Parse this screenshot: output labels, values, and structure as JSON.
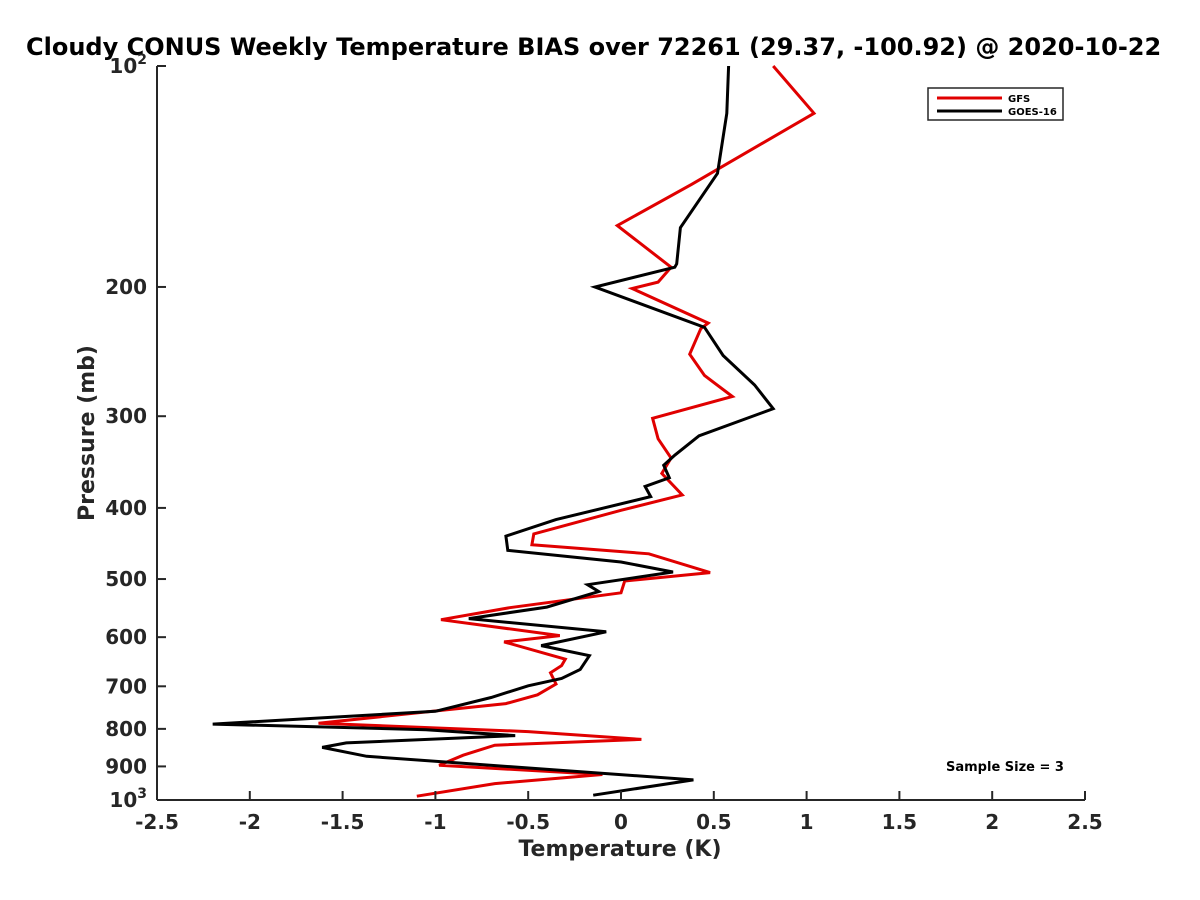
{
  "chart_data": {
    "type": "line",
    "title": "Cloudy CONUS Weekly Temperature BIAS over 72261 (29.37, -100.92) @ 2020-10-22",
    "xlabel": "Temperature (K)",
    "ylabel": "Pressure (mb)",
    "xlim": [
      -2.5,
      2.5
    ],
    "ylim": [
      100,
      1000
    ],
    "yscale": "log",
    "y_reversed": true,
    "grid": false,
    "legend_position": "top-right",
    "annotation": "Sample Size = 3",
    "x_ticks": [
      "-2.5",
      "-2",
      "-1.5",
      "-1",
      "-0.5",
      "0",
      "0.5",
      "1",
      "1.5",
      "2",
      "2.5"
    ],
    "x_tick_values": [
      -2.5,
      -2,
      -1.5,
      -1,
      -0.5,
      0,
      0.5,
      1,
      1.5,
      2,
      2.5
    ],
    "y_ticks": [
      {
        "value": 100,
        "label": "10",
        "sup": "2"
      },
      {
        "value": 200,
        "label": "200",
        "sup": ""
      },
      {
        "value": 300,
        "label": "300",
        "sup": ""
      },
      {
        "value": 400,
        "label": "400",
        "sup": ""
      },
      {
        "value": 500,
        "label": "500",
        "sup": ""
      },
      {
        "value": 600,
        "label": "600",
        "sup": ""
      },
      {
        "value": 700,
        "label": "700",
        "sup": ""
      },
      {
        "value": 800,
        "label": "800",
        "sup": ""
      },
      {
        "value": 900,
        "label": "900",
        "sup": ""
      },
      {
        "value": 1000,
        "label": "10",
        "sup": "3"
      }
    ],
    "series": [
      {
        "name": "GFS",
        "color": "#e00000",
        "points": [
          [
            0.82,
            100
          ],
          [
            1.04,
            116
          ],
          [
            0.38,
            145
          ],
          [
            -0.02,
            165
          ],
          [
            0.27,
            188
          ],
          [
            0.2,
            197
          ],
          [
            0.06,
            201
          ],
          [
            0.47,
            224
          ],
          [
            0.43,
            228
          ],
          [
            0.37,
            247
          ],
          [
            0.45,
            264
          ],
          [
            0.6,
            282
          ],
          [
            0.17,
            302
          ],
          [
            0.2,
            322
          ],
          [
            0.27,
            342
          ],
          [
            0.22,
            359
          ],
          [
            0.33,
            384
          ],
          [
            0.0,
            403
          ],
          [
            -0.47,
            434
          ],
          [
            -0.48,
            449
          ],
          [
            0.15,
            462
          ],
          [
            0.48,
            490
          ],
          [
            0.02,
            503
          ],
          [
            0.0,
            522
          ],
          [
            -0.6,
            547
          ],
          [
            -0.97,
            568
          ],
          [
            -0.33,
            597
          ],
          [
            -0.63,
            609
          ],
          [
            -0.3,
            643
          ],
          [
            -0.32,
            656
          ],
          [
            -0.38,
            671
          ],
          [
            -0.35,
            695
          ],
          [
            -0.45,
            719
          ],
          [
            -0.62,
            739
          ],
          [
            -1.63,
            786
          ],
          [
            -0.5,
            807
          ],
          [
            0.11,
            827
          ],
          [
            -0.68,
            842
          ],
          [
            -0.85,
            869
          ],
          [
            -0.98,
            897
          ],
          [
            -0.1,
            923
          ],
          [
            -0.68,
            950
          ],
          [
            -1.1,
            988
          ]
        ]
      },
      {
        "name": "GOES-16",
        "color": "#000000",
        "points": [
          [
            0.58,
            100
          ],
          [
            0.57,
            116
          ],
          [
            0.52,
            140
          ],
          [
            0.32,
            166
          ],
          [
            0.3,
            186
          ],
          [
            0.29,
            188
          ],
          [
            -0.14,
            200
          ],
          [
            0.45,
            227
          ],
          [
            0.55,
            248
          ],
          [
            0.72,
            272
          ],
          [
            0.82,
            293
          ],
          [
            0.42,
            319
          ],
          [
            0.29,
            339
          ],
          [
            0.23,
            350
          ],
          [
            0.26,
            364
          ],
          [
            0.13,
            374
          ],
          [
            0.16,
            386
          ],
          [
            -0.35,
            415
          ],
          [
            -0.62,
            437
          ],
          [
            -0.61,
            457
          ],
          [
            0.0,
            474
          ],
          [
            0.28,
            489
          ],
          [
            -0.18,
            509
          ],
          [
            -0.12,
            520
          ],
          [
            -0.4,
            546
          ],
          [
            -0.82,
            566
          ],
          [
            -0.08,
            590
          ],
          [
            -0.43,
            616
          ],
          [
            -0.17,
            636
          ],
          [
            -0.22,
            664
          ],
          [
            -0.32,
            683
          ],
          [
            -0.5,
            699
          ],
          [
            -0.7,
            725
          ],
          [
            -1.0,
            757
          ],
          [
            -2.2,
            788
          ],
          [
            -1.05,
            802
          ],
          [
            -0.57,
            817
          ],
          [
            -1.48,
            836
          ],
          [
            -1.61,
            848
          ],
          [
            -1.37,
            872
          ],
          [
            0.39,
            939
          ],
          [
            -0.15,
            985
          ]
        ]
      }
    ]
  }
}
